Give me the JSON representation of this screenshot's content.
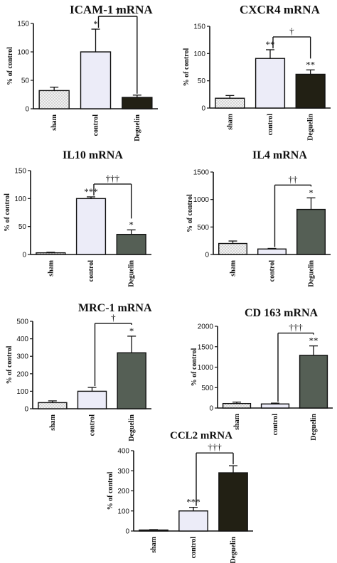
{
  "chart_data": [
    {
      "type": "bar",
      "title": "ICAM-1 mRNA",
      "ylabel": "% of control",
      "categories": [
        "sham",
        "control",
        "Deguelin"
      ],
      "values": [
        32,
        100,
        20
      ],
      "errors": [
        6,
        40,
        4
      ],
      "ylim": [
        0,
        150
      ],
      "yticks": [
        0,
        50,
        100,
        150
      ],
      "bar_colors": [
        "#eeeeee",
        "#ececf8",
        "#222014"
      ],
      "bar_patterns": [
        "dots",
        "none",
        "none"
      ],
      "marks": [
        "",
        "*",
        ""
      ],
      "bracket": {
        "from": 1,
        "to": 2,
        "label": "†"
      }
    },
    {
      "type": "bar",
      "title": "CXCR4 mRNA",
      "ylabel": "% of control",
      "categories": [
        "sham",
        "control",
        "Deguelin"
      ],
      "values": [
        18,
        91,
        62
      ],
      "errors": [
        5,
        16,
        8
      ],
      "ylim": [
        0,
        150
      ],
      "yticks": [
        0,
        50,
        100,
        150
      ],
      "bar_colors": [
        "#eeeeee",
        "#ececf8",
        "#222014"
      ],
      "bar_patterns": [
        "dots",
        "none",
        "none"
      ],
      "marks": [
        "",
        "**",
        "**"
      ],
      "bracket": {
        "from": 1,
        "to": 2,
        "label": "†"
      }
    },
    {
      "type": "bar",
      "title": "IL10 mRNA",
      "ylabel": "% of control",
      "categories": [
        "sham",
        "control",
        "Deguelin"
      ],
      "values": [
        3,
        100,
        36
      ],
      "errors": [
        1,
        3,
        8
      ],
      "ylim": [
        0,
        150
      ],
      "yticks": [
        0,
        50,
        100,
        150
      ],
      "bar_colors": [
        "#eeeeee",
        "#ececf8",
        "#555f55"
      ],
      "bar_patterns": [
        "dots",
        "none",
        "none"
      ],
      "marks": [
        "",
        "***",
        "*"
      ],
      "bracket": {
        "from": 1,
        "to": 2,
        "label": "†††"
      }
    },
    {
      "type": "bar",
      "title": "IL4 mRNA",
      "ylabel": "% of control",
      "categories": [
        "sham",
        "control",
        "Deguelin"
      ],
      "values": [
        200,
        100,
        820
      ],
      "errors": [
        45,
        10,
        210
      ],
      "ylim": [
        0,
        1500
      ],
      "yticks": [
        0,
        500,
        1000,
        1500
      ],
      "bar_colors": [
        "#eeeeee",
        "#ececf8",
        "#555f55"
      ],
      "bar_patterns": [
        "dots",
        "none",
        "none"
      ],
      "marks": [
        "",
        "",
        "*"
      ],
      "bracket": {
        "from": 1,
        "to": 2,
        "label": "††"
      }
    },
    {
      "type": "bar",
      "title": "MRC-1 mRNA",
      "ylabel": "% of control",
      "categories": [
        "sham",
        "control",
        "Deguelin"
      ],
      "values": [
        35,
        100,
        320
      ],
      "errors": [
        10,
        22,
        95
      ],
      "ylim": [
        0,
        500
      ],
      "yticks": [
        0,
        100,
        200,
        300,
        400,
        500
      ],
      "bar_colors": [
        "#eeeeee",
        "#ececf8",
        "#555f55"
      ],
      "bar_patterns": [
        "dots",
        "none",
        "none"
      ],
      "marks": [
        "",
        "",
        "*"
      ],
      "bracket": {
        "from": 1,
        "to": 2,
        "label": "†"
      }
    },
    {
      "type": "bar",
      "title": "CD 163 mRNA",
      "ylabel": "% of control",
      "categories": [
        "sham",
        "control",
        "Deguelin"
      ],
      "values": [
        110,
        100,
        1290
      ],
      "errors": [
        35,
        20,
        230
      ],
      "ylim": [
        0,
        2000
      ],
      "yticks": [
        0,
        500,
        1000,
        1500,
        2000
      ],
      "bar_colors": [
        "#eeeeee",
        "#ececf8",
        "#555f55"
      ],
      "bar_patterns": [
        "dots",
        "none",
        "none"
      ],
      "marks": [
        "",
        "",
        "**"
      ],
      "bracket": {
        "from": 1,
        "to": 2,
        "label": "†††"
      }
    },
    {
      "type": "bar",
      "title": "CCL2 mRNA",
      "ylabel": "% of control",
      "categories": [
        "sham",
        "control",
        "Deguelin"
      ],
      "values": [
        5,
        100,
        290
      ],
      "errors": [
        2,
        18,
        35
      ],
      "ylim": [
        0,
        400
      ],
      "yticks": [
        0,
        100,
        200,
        300,
        400
      ],
      "bar_colors": [
        "#eeeeee",
        "#ececf8",
        "#222014"
      ],
      "bar_patterns": [
        "dots",
        "none",
        "none"
      ],
      "marks": [
        "",
        "***",
        ""
      ],
      "bracket": {
        "from": 1,
        "to": 2,
        "label": "†††"
      }
    }
  ]
}
